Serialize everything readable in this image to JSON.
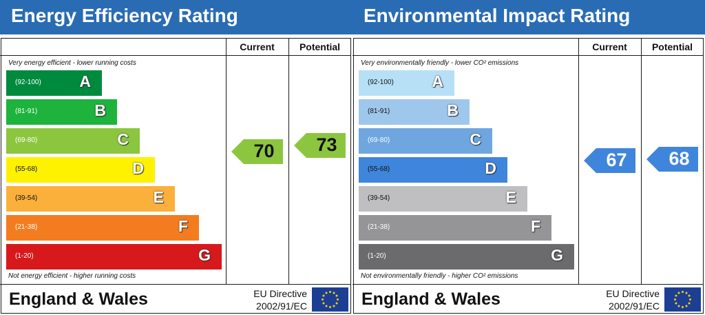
{
  "chart_data": [
    {
      "type": "bar",
      "title": "Energy Efficiency Rating",
      "column_headers": [
        "Current",
        "Potential"
      ],
      "top_note": "Very energy efficient - lower running costs",
      "bottom_note": "Not energy efficient - higher running costs",
      "bands": [
        {
          "letter": "A",
          "range": "(92-100)",
          "color": "#008a3e",
          "text_color": "#ffffff"
        },
        {
          "letter": "B",
          "range": "(81-91)",
          "color": "#1db33c",
          "text_color": "#ffffff"
        },
        {
          "letter": "C",
          "range": "(69-80)",
          "color": "#8cc63f",
          "text_color": "#ffffff"
        },
        {
          "letter": "D",
          "range": "(55-68)",
          "color": "#fff200",
          "text_color": "#111111"
        },
        {
          "letter": "E",
          "range": "(39-54)",
          "color": "#fbb03b",
          "text_color": "#111111"
        },
        {
          "letter": "F",
          "range": "(21-38)",
          "color": "#f47c20",
          "text_color": "#ffffff"
        },
        {
          "letter": "G",
          "range": "(1-20)",
          "color": "#d7191c",
          "text_color": "#ffffff"
        }
      ],
      "current": {
        "value": 70,
        "band": "C",
        "color": "#8cc63f"
      },
      "potential": {
        "value": 73,
        "band": "C",
        "color": "#8cc63f"
      },
      "footer": "England & Wales",
      "directive_line1": "EU Directive",
      "directive_line2": "2002/91/EC"
    },
    {
      "type": "bar",
      "title": "Environmental Impact Rating",
      "column_headers": [
        "Current",
        "Potential"
      ],
      "top_note": "Very environmentally friendly - lower CO² emissions",
      "bottom_note": "Not environmentally friendly - higher CO² emissions",
      "bands": [
        {
          "letter": "A",
          "range": "(92-100)",
          "color": "#b7e0f7",
          "text_color": "#111111"
        },
        {
          "letter": "B",
          "range": "(81-91)",
          "color": "#9fc7ec",
          "text_color": "#111111"
        },
        {
          "letter": "C",
          "range": "(69-80)",
          "color": "#6fa6e0",
          "text_color": "#ffffff"
        },
        {
          "letter": "D",
          "range": "(55-68)",
          "color": "#3f85db",
          "text_color": "#111111"
        },
        {
          "letter": "E",
          "range": "(39-54)",
          "color": "#bfbfc1",
          "text_color": "#111111"
        },
        {
          "letter": "F",
          "range": "(21-38)",
          "color": "#959597",
          "text_color": "#ffffff"
        },
        {
          "letter": "G",
          "range": "(1-20)",
          "color": "#6b6b6d",
          "text_color": "#ffffff"
        }
      ],
      "current": {
        "value": 67,
        "band": "D",
        "color": "#3f85db"
      },
      "potential": {
        "value": 68,
        "band": "D",
        "color": "#3f85db"
      },
      "footer": "England & Wales",
      "directive_line1": "EU Directive",
      "directive_line2": "2002/91/EC"
    }
  ]
}
